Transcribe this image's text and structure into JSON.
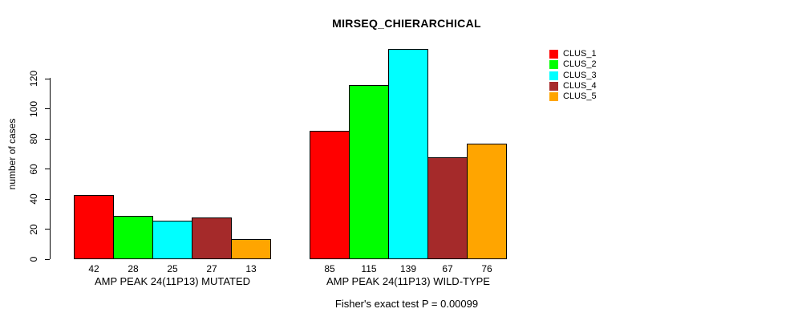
{
  "chart_data": {
    "type": "bar",
    "title": "MIRSEQ_CHIERARCHICAL",
    "ylabel": "number of cases",
    "xlabel": "",
    "ylim": [
      0,
      139
    ],
    "yticks": [
      0,
      20,
      40,
      60,
      80,
      100,
      120
    ],
    "grid": false,
    "legend_position": "top-right",
    "series_names": [
      "CLUS_1",
      "CLUS_2",
      "CLUS_3",
      "CLUS_4",
      "CLUS_5"
    ],
    "colors": [
      "#FF0000",
      "#00FF00",
      "#00FFFF",
      "#A52A2A",
      "#FFA500"
    ],
    "groups": [
      {
        "label": "AMP PEAK 24(11P13) MUTATED",
        "values": [
          42,
          28,
          25,
          27,
          13
        ]
      },
      {
        "label": "AMP PEAK 24(11P13) WILD-TYPE",
        "values": [
          85,
          115,
          139,
          67,
          76
        ]
      }
    ],
    "annotation": "Fisher's exact test P = 0.00099"
  }
}
